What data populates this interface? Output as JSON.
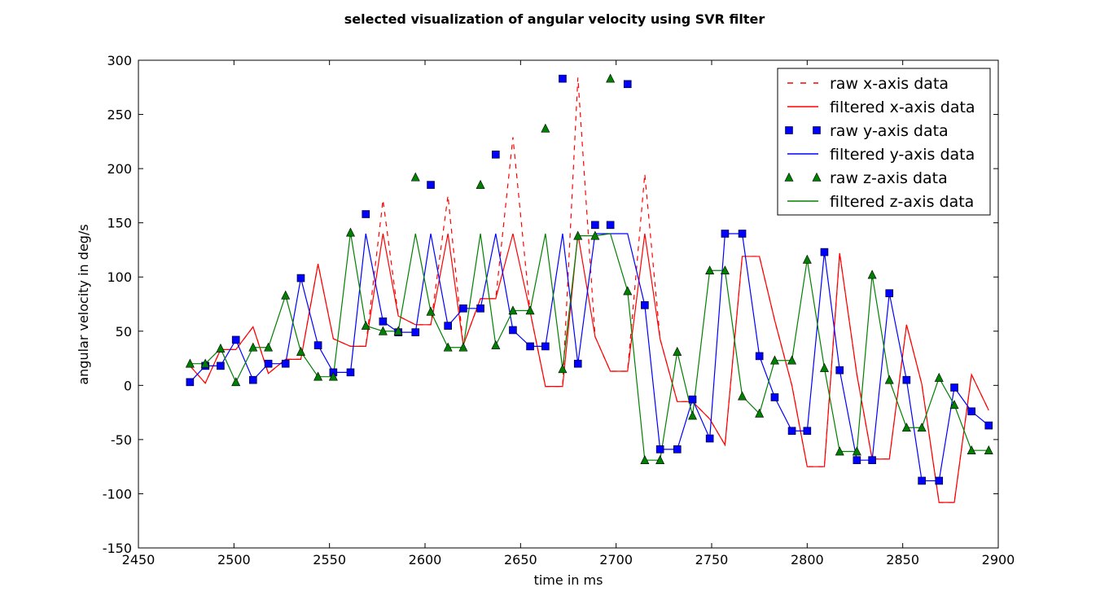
{
  "chart_data": {
    "type": "line",
    "title": "selected visualization of angular velocity using SVR filter",
    "xlabel": "time in ms",
    "ylabel": "angular velocity in deg/s",
    "xlim": [
      2450,
      2900
    ],
    "ylim": [
      -150,
      300
    ],
    "xticks": [
      2450,
      2500,
      2550,
      2600,
      2650,
      2700,
      2750,
      2800,
      2850,
      2900
    ],
    "yticks": [
      -150,
      -100,
      -50,
      0,
      50,
      100,
      150,
      200,
      250,
      300
    ],
    "grid": false,
    "legend_position": "top-right",
    "colors": {
      "x": "#ff0000",
      "y": "#0000ff",
      "z": "#008000"
    },
    "series": [
      {
        "name": "raw x-axis data",
        "style": "dashed",
        "color": "#ff0000",
        "x": [
          2477,
          2485,
          2493,
          2501,
          2510,
          2518,
          2527,
          2535,
          2544,
          2552,
          2561,
          2569,
          2578,
          2586,
          2595,
          2603,
          2612,
          2620,
          2629,
          2637,
          2646,
          2655,
          2663,
          2672,
          2680,
          2689,
          2697,
          2706,
          2715,
          2723,
          2732,
          2740,
          2749,
          2757,
          2766,
          2775,
          2783,
          2792,
          2800,
          2809,
          2817,
          2826,
          2834,
          2843,
          2852,
          2860,
          2869,
          2877,
          2886,
          2895
        ],
        "y": [
          18,
          2,
          33,
          33,
          54,
          11,
          24,
          24,
          112,
          43,
          36,
          36,
          171,
          64,
          56,
          56,
          175,
          37,
          80,
          80,
          229,
          68,
          -1,
          -1,
          284,
          45,
          13,
          13,
          195,
          43,
          -15,
          -15,
          -31,
          -55,
          119,
          119,
          60,
          0,
          -75,
          -75,
          122,
          10,
          -68,
          -68,
          56,
          1,
          -108,
          -108,
          10,
          -23
        ]
      },
      {
        "name": "filtered x-axis data",
        "style": "solid",
        "color": "#ff0000",
        "x": [
          2477,
          2485,
          2493,
          2501,
          2510,
          2518,
          2527,
          2535,
          2544,
          2552,
          2561,
          2569,
          2578,
          2586,
          2595,
          2603,
          2612,
          2620,
          2629,
          2637,
          2646,
          2655,
          2663,
          2672,
          2680,
          2689,
          2697,
          2706,
          2715,
          2723,
          2732,
          2740,
          2749,
          2757,
          2766,
          2775,
          2783,
          2792,
          2800,
          2809,
          2817,
          2826,
          2834,
          2843,
          2852,
          2860,
          2869,
          2877,
          2886,
          2895
        ],
        "y": [
          18,
          2,
          33,
          33,
          54,
          11,
          24,
          24,
          112,
          43,
          36,
          36,
          140,
          64,
          56,
          56,
          140,
          37,
          80,
          80,
          140,
          68,
          -1,
          -1,
          140,
          45,
          13,
          13,
          140,
          43,
          -15,
          -15,
          -31,
          -55,
          119,
          119,
          60,
          0,
          -75,
          -75,
          122,
          10,
          -68,
          -68,
          56,
          1,
          -108,
          -108,
          10,
          -23
        ]
      },
      {
        "name": "raw y-axis data",
        "style": "square",
        "color": "#0000ff",
        "x": [
          2477,
          2485,
          2493,
          2501,
          2510,
          2518,
          2527,
          2535,
          2544,
          2552,
          2561,
          2569,
          2578,
          2586,
          2595,
          2603,
          2612,
          2620,
          2629,
          2637,
          2646,
          2655,
          2663,
          2672,
          2680,
          2689,
          2697,
          2706,
          2715,
          2723,
          2732,
          2740,
          2749,
          2757,
          2766,
          2775,
          2783,
          2792,
          2800,
          2809,
          2817,
          2826,
          2834,
          2843,
          2852,
          2860,
          2869,
          2877,
          2886,
          2895
        ],
        "y": [
          3,
          18,
          18,
          42,
          5,
          20,
          20,
          99,
          37,
          12,
          12,
          158,
          59,
          49,
          49,
          185,
          55,
          71,
          71,
          213,
          51,
          36,
          36,
          283,
          20,
          148,
          148,
          278,
          74,
          -59,
          -59,
          -13,
          -49,
          140,
          140,
          27,
          -11,
          -42,
          -42,
          123,
          14,
          -69,
          -69,
          85,
          5,
          -88,
          -88,
          -2,
          -24,
          -37
        ]
      },
      {
        "name": "filtered y-axis data",
        "style": "solid",
        "color": "#0000ff",
        "x": [
          2477,
          2485,
          2493,
          2501,
          2510,
          2518,
          2527,
          2535,
          2544,
          2552,
          2561,
          2569,
          2578,
          2586,
          2595,
          2603,
          2612,
          2620,
          2629,
          2637,
          2646,
          2655,
          2663,
          2672,
          2680,
          2689,
          2697,
          2706,
          2715,
          2723,
          2732,
          2740,
          2749,
          2757,
          2766,
          2775,
          2783,
          2792,
          2800,
          2809,
          2817,
          2826,
          2834,
          2843,
          2852,
          2860,
          2869,
          2877,
          2886,
          2895
        ],
        "y": [
          3,
          18,
          18,
          42,
          5,
          20,
          20,
          99,
          37,
          12,
          12,
          140,
          59,
          49,
          49,
          140,
          55,
          71,
          71,
          140,
          51,
          36,
          36,
          140,
          20,
          140,
          140,
          140,
          74,
          -59,
          -59,
          -13,
          -49,
          140,
          140,
          27,
          -11,
          -42,
          -42,
          123,
          14,
          -69,
          -69,
          85,
          5,
          -88,
          -88,
          -2,
          -24,
          -37
        ]
      },
      {
        "name": "raw z-axis data",
        "style": "triangle",
        "color": "#008000",
        "x": [
          2477,
          2485,
          2493,
          2501,
          2510,
          2518,
          2527,
          2535,
          2544,
          2552,
          2561,
          2569,
          2578,
          2586,
          2595,
          2603,
          2612,
          2620,
          2629,
          2637,
          2646,
          2655,
          2663,
          2672,
          2680,
          2689,
          2697,
          2706,
          2715,
          2723,
          2732,
          2740,
          2749,
          2757,
          2766,
          2775,
          2783,
          2792,
          2800,
          2809,
          2817,
          2826,
          2834,
          2843,
          2852,
          2860,
          2869,
          2877,
          2886,
          2895
        ],
        "y": [
          20,
          20,
          34,
          3,
          35,
          35,
          83,
          31,
          8,
          8,
          141,
          55,
          50,
          50,
          192,
          68,
          35,
          35,
          185,
          37,
          69,
          69,
          237,
          15,
          138,
          138,
          283,
          87,
          -69,
          -69,
          31,
          -28,
          106,
          106,
          -10,
          -26,
          23,
          23,
          116,
          16,
          -61,
          -61,
          102,
          5,
          -39,
          -39,
          7,
          -18,
          -60,
          -60
        ]
      },
      {
        "name": "filtered z-axis data",
        "style": "solid",
        "color": "#008000",
        "x": [
          2477,
          2485,
          2493,
          2501,
          2510,
          2518,
          2527,
          2535,
          2544,
          2552,
          2561,
          2569,
          2578,
          2586,
          2595,
          2603,
          2612,
          2620,
          2629,
          2637,
          2646,
          2655,
          2663,
          2672,
          2680,
          2689,
          2697,
          2706,
          2715,
          2723,
          2732,
          2740,
          2749,
          2757,
          2766,
          2775,
          2783,
          2792,
          2800,
          2809,
          2817,
          2826,
          2834,
          2843,
          2852,
          2860,
          2869,
          2877,
          2886,
          2895
        ],
        "y": [
          20,
          20,
          34,
          3,
          35,
          35,
          83,
          31,
          8,
          8,
          141,
          55,
          50,
          50,
          140,
          68,
          35,
          35,
          140,
          37,
          69,
          69,
          140,
          15,
          138,
          138,
          140,
          87,
          -69,
          -69,
          31,
          -28,
          106,
          106,
          -10,
          -26,
          23,
          23,
          116,
          16,
          -61,
          -61,
          102,
          5,
          -39,
          -39,
          7,
          -18,
          -60,
          -60
        ]
      }
    ]
  }
}
